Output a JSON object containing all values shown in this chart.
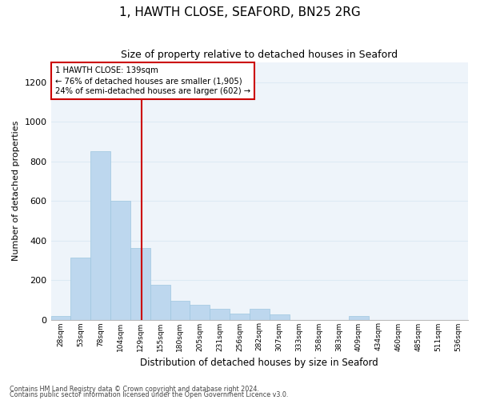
{
  "title": "1, HAWTH CLOSE, SEAFORD, BN25 2RG",
  "subtitle": "Size of property relative to detached houses in Seaford",
  "xlabel": "Distribution of detached houses by size in Seaford",
  "ylabel": "Number of detached properties",
  "footer_line1": "Contains HM Land Registry data © Crown copyright and database right 2024.",
  "footer_line2": "Contains public sector information licensed under the Open Government Licence v3.0.",
  "bin_labels": [
    "28sqm",
    "53sqm",
    "78sqm",
    "104sqm",
    "129sqm",
    "155sqm",
    "180sqm",
    "205sqm",
    "231sqm",
    "256sqm",
    "282sqm",
    "307sqm",
    "333sqm",
    "358sqm",
    "383sqm",
    "409sqm",
    "434sqm",
    "460sqm",
    "485sqm",
    "511sqm",
    "536sqm"
  ],
  "bar_values": [
    20,
    315,
    850,
    600,
    360,
    175,
    95,
    75,
    55,
    30,
    55,
    25,
    0,
    0,
    0,
    20,
    0,
    0,
    0,
    0,
    0
  ],
  "bar_color": "#BDD7EE",
  "bar_edge_color": "#9EC6E0",
  "vline_color": "#CC0000",
  "vline_pos": 4.55,
  "annotation_text": "1 HAWTH CLOSE: 139sqm\n← 76% of detached houses are smaller (1,905)\n24% of semi-detached houses are larger (602) →",
  "annotation_box_color": "#CC0000",
  "ylim": [
    0,
    1300
  ],
  "yticks": [
    0,
    200,
    400,
    600,
    800,
    1000,
    1200
  ],
  "grid_color": "#DDEAF4",
  "bg_color": "#EEF4FA",
  "title_fontsize": 11,
  "subtitle_fontsize": 9,
  "bar_width": 1.0
}
